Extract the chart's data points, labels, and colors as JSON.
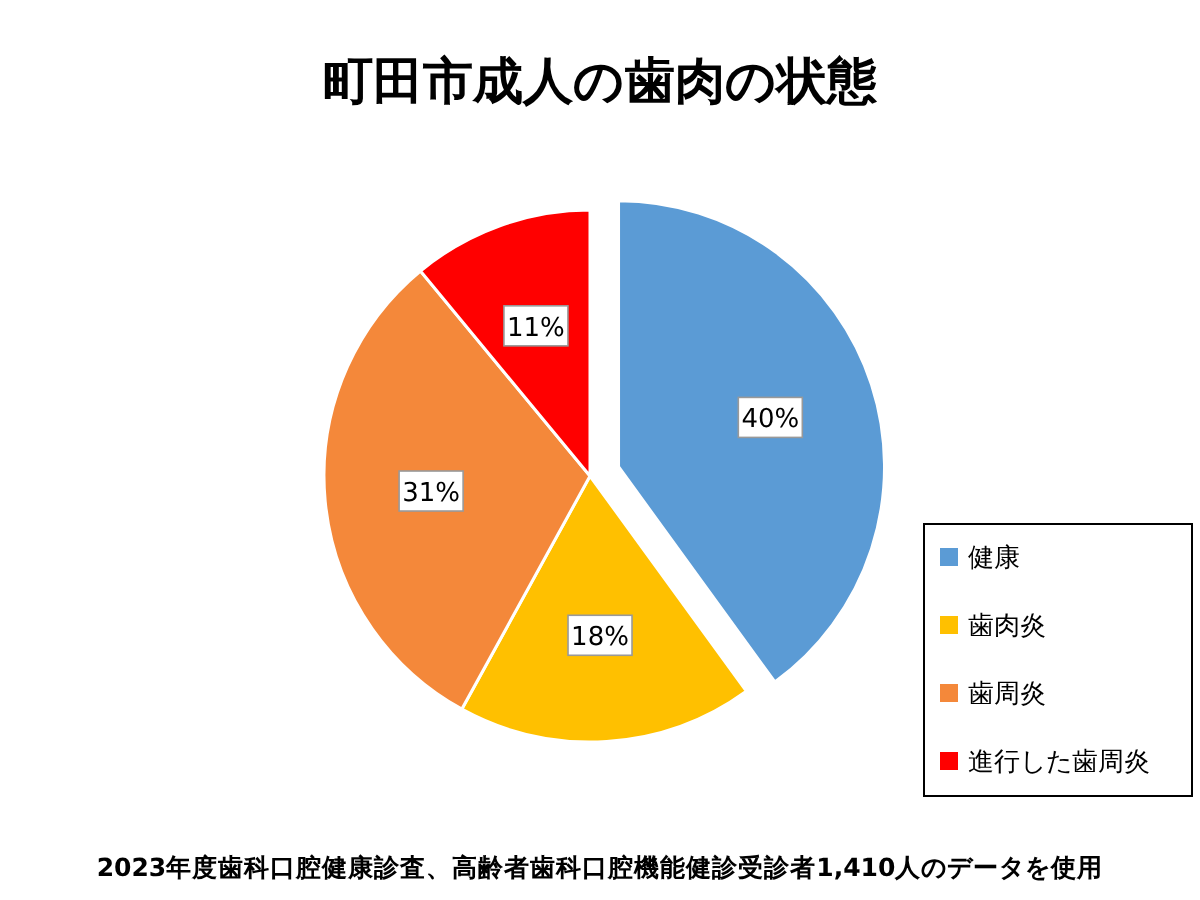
{
  "chart_data": {
    "type": "pie",
    "title": "町田市成人の歯肉の状態",
    "categories": [
      "健康",
      "歯肉炎",
      "歯周炎",
      "進行した歯周炎"
    ],
    "values": [
      40,
      18,
      31,
      11
    ],
    "colors": [
      "#5b9bd5",
      "#ffc000",
      "#f4883a",
      "#ff0000"
    ],
    "value_labels": [
      "40%",
      "18%",
      "31%",
      "11%"
    ],
    "legend": "right",
    "annotations": [
      "2023年度歯科口腔健康診査、高齢者歯科口腔機能健診受診者1,410人のデータを使用"
    ]
  }
}
